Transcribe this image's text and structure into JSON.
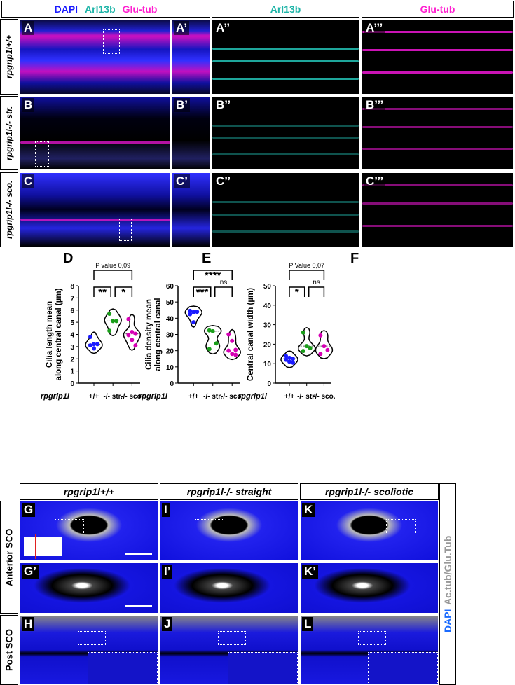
{
  "top": {
    "header_merged": {
      "dapi": "DAPI",
      "arl": "Arl13b",
      "glu": "Glu-tub"
    },
    "header_arl": "Arl13b",
    "header_glu": "Glu-tub",
    "row_labels": [
      "rpgrip1l+/+",
      "rpgrip1l-/- str.",
      "rpgrip1l-/- sco."
    ],
    "panels": [
      [
        "A",
        "A’",
        "A’’",
        "A’’’"
      ],
      [
        "B",
        "B’",
        "B’’",
        "B’’’"
      ],
      [
        "C",
        "C’",
        "C’’",
        "C’’’"
      ]
    ],
    "colors": {
      "dapi": "#1a1aff",
      "arl": "#2fd6c8",
      "glu": "#ff1fd0"
    }
  },
  "chart_data": [
    {
      "panel": "D",
      "type": "violin",
      "ylabel": "Cilia length mean along central canal (µm)",
      "xlabel": "rpgrip1l",
      "categories": [
        "+/+",
        "-/- str.",
        "-/- sco."
      ],
      "ylim": [
        0,
        8
      ],
      "yticks": [
        0,
        1,
        2,
        3,
        4,
        5,
        6,
        7,
        8
      ],
      "series": [
        {
          "name": "+/+",
          "color": "#1a1aff",
          "values": [
            3.8,
            3.2,
            3.2,
            3.1,
            2.85
          ]
        },
        {
          "name": "-/- str.",
          "color": "#1a9e1a",
          "values": [
            5.7,
            5.1,
            5.1,
            4.3
          ]
        },
        {
          "name": "-/- sco.",
          "color": "#d600b4",
          "values": [
            5.25,
            4.2,
            4.05,
            3.95,
            3.55,
            3.1
          ]
        }
      ],
      "annotations": [
        {
          "text": "P value 0,09",
          "from": 0,
          "to": 2,
          "level": 0
        },
        {
          "text": "**",
          "from": 0,
          "to": 1,
          "level": 1
        },
        {
          "text": "*",
          "from": 1,
          "to": 2,
          "level": 1
        }
      ]
    },
    {
      "panel": "E",
      "type": "violin",
      "ylabel": "Cilia density mean along central canal",
      "xlabel": "rpgrip1l",
      "categories": [
        "+/+",
        "-/- str.",
        "-/- sco."
      ],
      "ylim": [
        0,
        60
      ],
      "yticks": [
        0,
        10,
        20,
        30,
        40,
        50,
        60
      ],
      "series": [
        {
          "name": "+/+",
          "color": "#1a1aff",
          "values": [
            44.5,
            43.8,
            44,
            42.5,
            37.5
          ]
        },
        {
          "name": "-/- str.",
          "color": "#1a9e1a",
          "values": [
            32.5,
            32,
            24.5,
            21
          ]
        },
        {
          "name": "-/- sco.",
          "color": "#d600b4",
          "values": [
            30,
            26,
            20.5,
            20,
            18,
            17.5
          ]
        }
      ],
      "annotations": [
        {
          "text": "****",
          "from": 0,
          "to": 2,
          "level": 0
        },
        {
          "text": "***",
          "from": 0,
          "to": 1,
          "level": 1
        },
        {
          "text": "ns",
          "from": 1,
          "to": 2,
          "level": 1
        }
      ]
    },
    {
      "panel": "F",
      "type": "violin",
      "ylabel": "Central canal width (µm)",
      "xlabel": "rpgrip1l",
      "categories": [
        "+/+",
        "-/- str.",
        "-/- sco."
      ],
      "ylim": [
        0,
        50
      ],
      "yticks": [
        0,
        10,
        20,
        30,
        40,
        50
      ],
      "series": [
        {
          "name": "+/+",
          "color": "#1a1aff",
          "values": [
            14,
            13,
            12.5,
            12,
            11,
            10.5
          ]
        },
        {
          "name": "-/- str.",
          "color": "#1a9e1a",
          "values": [
            26,
            19,
            18,
            16.5
          ]
        },
        {
          "name": "-/- sco.",
          "color": "#d600b4",
          "values": [
            24.5,
            19,
            17,
            15
          ]
        }
      ],
      "annotations": [
        {
          "text": "P Value 0,07",
          "from": 0,
          "to": 2,
          "level": 0
        },
        {
          "text": "*",
          "from": 0,
          "to": 1,
          "level": 1
        },
        {
          "text": "ns",
          "from": 1,
          "to": 2,
          "level": 1
        }
      ]
    }
  ],
  "bottom": {
    "col_headers": [
      "rpgrip1l+/+",
      "rpgrip1l-/- straight",
      "rpgrip1l-/- scoliotic"
    ],
    "row_labels": [
      "Anterior SCO",
      "Post SCO"
    ],
    "side_label": {
      "dapi": "DAPI",
      "ac": "Ac.tub/Glu.Tub"
    },
    "panels": [
      [
        "G",
        "I",
        "K"
      ],
      [
        "G’",
        "I’",
        "K’"
      ],
      [
        "H",
        "J",
        "L"
      ]
    ]
  }
}
